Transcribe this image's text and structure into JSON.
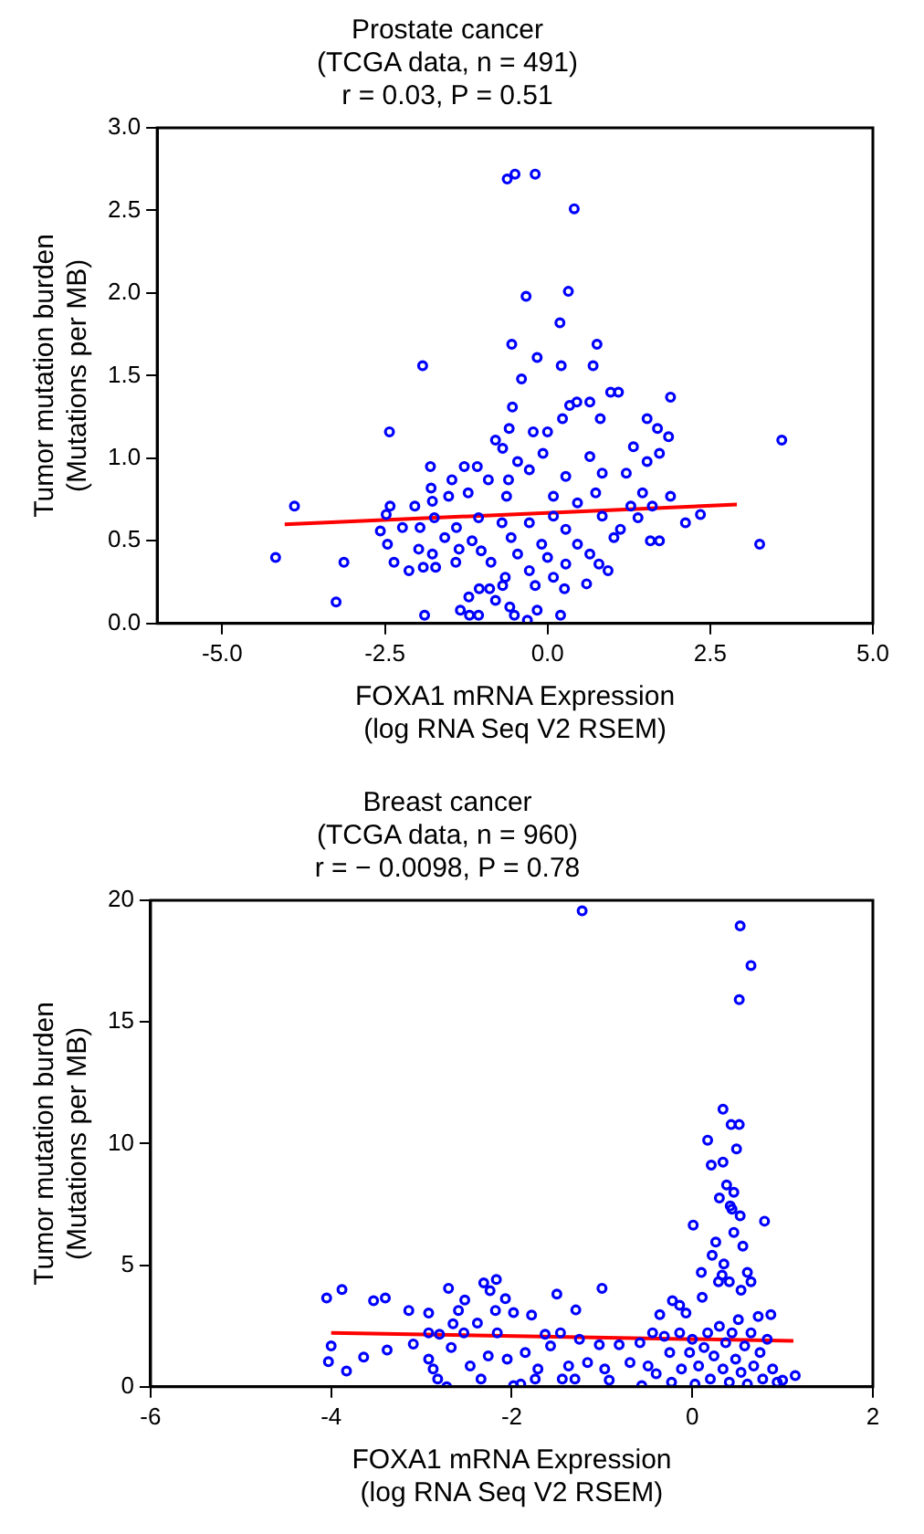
{
  "chart_data": [
    {
      "type": "scatter",
      "title": "Prostate cancer\n(TCGA data, n = 491)\nr = 0.03, P = 0.51",
      "xlabel": "FOXA1 mRNA Expression\n(log RNA Seq V2 RSEM)",
      "ylabel": "Tumor mutation burden\n(Mutations per MB)",
      "xlim": [
        -6,
        5
      ],
      "xticks": [
        {
          "value": -5,
          "label": "-5.0"
        },
        {
          "value": -2.5,
          "label": "-2.5"
        },
        {
          "value": 0,
          "label": "0.0"
        },
        {
          "value": 2.5,
          "label": "2.5"
        },
        {
          "value": 5,
          "label": "5.0"
        }
      ],
      "ylim": [
        0,
        3
      ],
      "yticks": [
        {
          "value": 0,
          "label": "0.0"
        },
        {
          "value": 0.5,
          "label": "0.5"
        },
        {
          "value": 1,
          "label": "1.0"
        },
        {
          "value": 1.5,
          "label": "1.5"
        },
        {
          "value": 2,
          "label": "2.0"
        },
        {
          "value": 2.5,
          "label": "2.5"
        },
        {
          "value": 3,
          "label": "3.0"
        }
      ],
      "grid": false,
      "legend": false,
      "series": [
        {
          "marker": "circle",
          "color": "#0000ff",
          "x": [
            -0.62,
            -0.5,
            -0.19,
            0.41,
            -0.33,
            0.32,
            0.19,
            -0.55,
            0.76,
            -0.16,
            -1.92,
            0.21,
            0.7,
            -0.4,
            0.97,
            1.09,
            1.89,
            -0.54,
            0.45,
            0.65,
            0.34,
            0.23,
            1.53,
            0.81,
            -2.43,
            3.6,
            1.86,
            1.69,
            -0.59,
            -0.22,
            0,
            -0.8,
            -0.69,
            1.32,
            1.72,
            -0.46,
            -0.07,
            0.65,
            -1.8,
            -1.28,
            -1.08,
            1.53,
            -1.47,
            -0.91,
            -0.28,
            0.28,
            0.84,
            1.21,
            -1.79,
            -1.22,
            -0.6,
            1.46,
            1.89,
            -3.89,
            -2.42,
            -2.04,
            -1.52,
            -1.77,
            -0.63,
            0.09,
            0.74,
            0.46,
            1.28,
            1.61,
            2.35,
            2.12,
            -2.48,
            -2.23,
            -2.57,
            -1.96,
            -1.74,
            -1.4,
            -1.06,
            -0.7,
            -0.28,
            0.09,
            0.28,
            0.84,
            1.12,
            1.39,
            1.58,
            1.72,
            -2.46,
            3.26,
            -1.58,
            -1.16,
            -0.56,
            -0.09,
            0.46,
            1.02,
            -1.36,
            -1.98,
            -1.77,
            -1.02,
            -0.46,
            0,
            0.65,
            -4.18,
            -3.13,
            -2.36,
            -1.41,
            -0.87,
            -0.28,
            0.28,
            0.79,
            -2.13,
            -1.91,
            -1.72,
            -0.65,
            0.09,
            0.6,
            0.93,
            -0.69,
            -1.05,
            -0.89,
            -0.19,
            0.26,
            -3.25,
            -1.21,
            -0.8,
            -0.58,
            -1.34,
            -0.16,
            -1.89,
            -1.2,
            -1.06,
            -0.51,
            -0.31,
            0.2
          ],
          "values": [
            2.69,
            2.72,
            2.72,
            2.51,
            1.98,
            2.01,
            1.82,
            1.69,
            1.69,
            1.61,
            1.56,
            1.56,
            1.56,
            1.48,
            1.4,
            1.4,
            1.37,
            1.31,
            1.34,
            1.34,
            1.32,
            1.24,
            1.24,
            1.24,
            1.16,
            1.11,
            1.13,
            1.18,
            1.18,
            1.16,
            1.16,
            1.11,
            1.06,
            1.07,
            1.03,
            0.98,
            1.03,
            1.01,
            0.95,
            0.95,
            0.95,
            0.98,
            0.87,
            0.87,
            0.93,
            0.89,
            0.91,
            0.91,
            0.82,
            0.79,
            0.87,
            0.79,
            0.77,
            0.71,
            0.71,
            0.71,
            0.77,
            0.74,
            0.77,
            0.77,
            0.79,
            0.73,
            0.71,
            0.71,
            0.66,
            0.61,
            0.66,
            0.58,
            0.56,
            0.58,
            0.64,
            0.58,
            0.64,
            0.61,
            0.61,
            0.65,
            0.57,
            0.65,
            0.57,
            0.64,
            0.5,
            0.5,
            0.48,
            0.48,
            0.52,
            0.5,
            0.52,
            0.48,
            0.48,
            0.52,
            0.45,
            0.45,
            0.42,
            0.44,
            0.42,
            0.4,
            0.42,
            0.4,
            0.37,
            0.37,
            0.37,
            0.37,
            0.32,
            0.36,
            0.36,
            0.32,
            0.34,
            0.34,
            0.28,
            0.28,
            0.24,
            0.32,
            0.23,
            0.21,
            0.21,
            0.23,
            0.21,
            0.13,
            0.16,
            0.14,
            0.1,
            0.08,
            0.08,
            0.05,
            0.05,
            0.05,
            0.05,
            0.02,
            0.05
          ]
        },
        {
          "type": "line",
          "color": "#ff0000",
          "x": [
            -4.04,
            2.91
          ],
          "values": [
            0.6,
            0.72
          ]
        }
      ]
    },
    {
      "type": "scatter",
      "title": "Breast cancer\n(TCGA data, n = 960)\nr = − 0.0098, P = 0.78",
      "xlabel": "FOXA1 mRNA Expression\n(log RNA Seq V2 RSEM)",
      "ylabel": "Tumor mutation burden\n(Mutations per MB)",
      "xlim": [
        -6,
        2
      ],
      "xticks": [
        -6,
        -4,
        -2,
        0,
        2
      ],
      "ylim": [
        0,
        20
      ],
      "yticks": [
        0,
        5,
        10,
        15,
        20
      ],
      "grid": false,
      "legend": false,
      "series": [
        {
          "marker": "circle",
          "color": "#0000ff",
          "x": [
            -1.22,
            0.53,
            0.65,
            0.52,
            0.34,
            0.43,
            0.52,
            0.17,
            0.49,
            0.21,
            0.34,
            0.38,
            0.46,
            0.3,
            0.42,
            0.44,
            0.53,
            0.8,
            0.01,
            0.46,
            0.26,
            0.56,
            0.22,
            0.35,
            0.1,
            0.61,
            0.33,
            0.41,
            0.65,
            0.29,
            0.54,
            -4.05,
            -3.88,
            -3.53,
            -3.4,
            -3.14,
            -2.92,
            -2.7,
            -2.31,
            -2.17,
            -2.24,
            -2.07,
            -2.52,
            -2.59,
            -2.18,
            -1.98,
            -1.78,
            -1.5,
            -1.29,
            -1,
            -0.22,
            -0.14,
            -0.07,
            0.11,
            0.87,
            -0.36,
            -4,
            -4.03,
            -3.83,
            -3.64,
            -3.38,
            -3.09,
            -2.92,
            -2.8,
            -2.92,
            -2.87,
            -2.82,
            -2.72,
            -2.67,
            -2.65,
            -2.53,
            -2.46,
            -2.38,
            -2.34,
            -2.26,
            -2.16,
            -2.05,
            -1.98,
            -1.9,
            -1.85,
            -1.74,
            -1.71,
            -1.63,
            -1.57,
            -1.46,
            -1.44,
            -1.37,
            -1.3,
            -1.25,
            -1.16,
            -1.03,
            -0.97,
            -0.92,
            -0.81,
            -0.69,
            -0.58,
            -0.56,
            -0.49,
            -0.44,
            -0.4,
            -0.31,
            -0.25,
            -0.23,
            -0.14,
            -0.12,
            -0.03,
            0,
            0.03,
            0.07,
            0.13,
            0.17,
            0.2,
            0.24,
            0.3,
            0.34,
            0.37,
            0.41,
            0.44,
            0.48,
            0.51,
            0.54,
            0.58,
            0.61,
            0.65,
            0.68,
            0.73,
            0.75,
            0.78,
            0.83,
            0.89,
            0.94,
            1,
            1.14
          ],
          "values": [
            19.57,
            18.95,
            17.32,
            15.92,
            11.41,
            10.78,
            10.78,
            10.14,
            9.78,
            9.11,
            9.24,
            8.3,
            8,
            7.76,
            7.43,
            7.3,
            7.03,
            6.81,
            6.65,
            6.35,
            5.95,
            5.78,
            5.41,
            5.05,
            4.7,
            4.7,
            4.59,
            4.32,
            4.32,
            4.32,
            3.97,
            3.65,
            4,
            3.54,
            3.65,
            3.14,
            3.03,
            4.05,
            4.27,
            4.41,
            3.95,
            3.62,
            3.57,
            3.14,
            3.14,
            3.05,
            2.95,
            3.81,
            3.16,
            4.05,
            3.54,
            3.35,
            3.03,
            3.68,
            2.97,
            2.97,
            1.68,
            1.03,
            0.65,
            1.22,
            1.51,
            1.76,
            2.22,
            2.16,
            1.14,
            0.73,
            0.32,
            0,
            1.62,
            2.59,
            2.22,
            0.86,
            2.62,
            0.32,
            1.27,
            2.22,
            1.14,
            0.05,
            0.11,
            1.41,
            0.32,
            0.73,
            2.16,
            1.68,
            2.22,
            0.32,
            0.86,
            0.32,
            1.95,
            1,
            1.73,
            0.73,
            0.27,
            1.73,
            1,
            1.81,
            0.05,
            0.86,
            2.22,
            0.54,
            2.08,
            1.41,
            0.19,
            2.22,
            0.73,
            1.41,
            1.95,
            0.11,
            0.86,
            1.62,
            2.22,
            0.32,
            1.27,
            2.49,
            0.73,
            1.81,
            0.19,
            2.22,
            1.14,
            2.76,
            0.59,
            1.68,
            0.11,
            2.22,
            0.86,
            2.89,
            1.41,
            0.32,
            1.95,
            0.73,
            0.19,
            0.27,
            0.46
          ]
        },
        {
          "type": "line",
          "color": "#ff0000",
          "x": [
            -4,
            1.12
          ],
          "values": [
            2.22,
            1.89
          ]
        }
      ]
    }
  ]
}
